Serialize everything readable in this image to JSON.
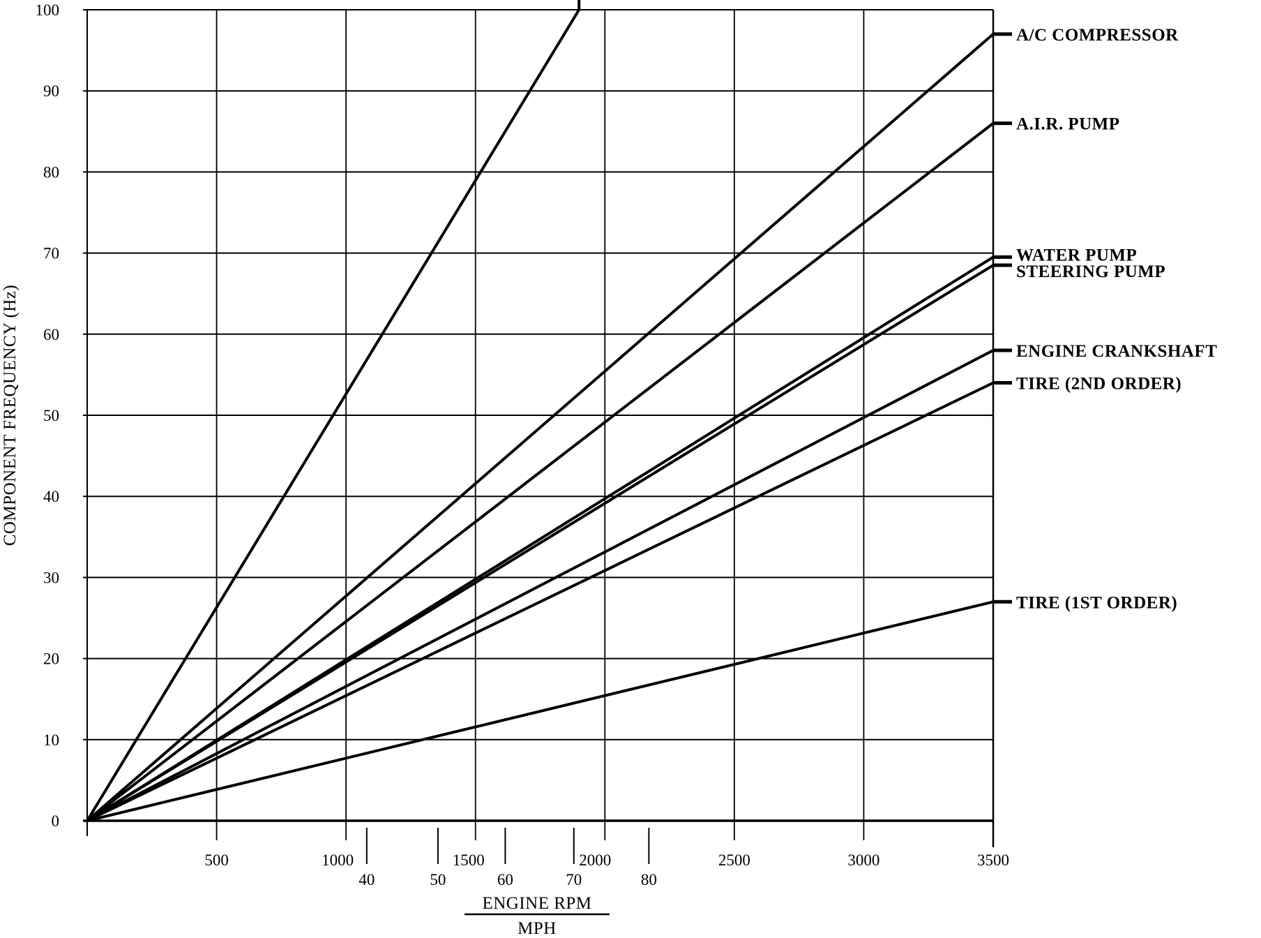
{
  "chart_data": {
    "type": "line",
    "title": "",
    "xlabel": "ENGINE RPM",
    "xlabel_secondary": "MPH",
    "ylabel": "COMPONENT FREQUENCY (Hz)",
    "xlim": [
      0,
      3500
    ],
    "ylim": [
      0,
      100
    ],
    "grid": true,
    "x_ticks": [
      500,
      1000,
      1500,
      2000,
      2500,
      3000,
      3500
    ],
    "x_tick_labels": [
      "500",
      "1000",
      "1500",
      "2000",
      "2500",
      "3000",
      "3500"
    ],
    "y_ticks": [
      0,
      10,
      20,
      30,
      40,
      50,
      60,
      70,
      80,
      90,
      100
    ],
    "y_tick_labels": [
      "0",
      "10",
      "20",
      "30",
      "40",
      "50",
      "60",
      "70",
      "80",
      "90",
      "100"
    ],
    "mph_ticks": [
      {
        "label": "40",
        "rpm": 1080
      },
      {
        "label": "50",
        "rpm": 1355
      },
      {
        "label": "60",
        "rpm": 1615
      },
      {
        "label": "70",
        "rpm": 1880
      },
      {
        "label": "80",
        "rpm": 2170
      }
    ],
    "series": [
      {
        "name": "",
        "x": [
          0,
          1900
        ],
        "y": [
          0,
          100
        ]
      },
      {
        "name": "A/C COMPRESSOR",
        "x": [
          0,
          3500
        ],
        "y": [
          0,
          97
        ]
      },
      {
        "name": "A.I.R. PUMP",
        "x": [
          0,
          3500
        ],
        "y": [
          0,
          86
        ]
      },
      {
        "name": "WATER PUMP",
        "x": [
          0,
          3500
        ],
        "y": [
          0,
          69.5
        ]
      },
      {
        "name": "STEERING PUMP",
        "x": [
          0,
          3500
        ],
        "y": [
          0,
          68.5
        ]
      },
      {
        "name": "ENGINE CRANKSHAFT",
        "x": [
          0,
          3500
        ],
        "y": [
          0,
          58
        ]
      },
      {
        "name": "TIRE (2ND ORDER)",
        "x": [
          0,
          3500
        ],
        "y": [
          0,
          54
        ]
      },
      {
        "name": "TIRE (1ST ORDER)",
        "x": [
          0,
          3500
        ],
        "y": [
          0,
          27
        ]
      }
    ],
    "legend_placement": "right (direct labels)"
  }
}
